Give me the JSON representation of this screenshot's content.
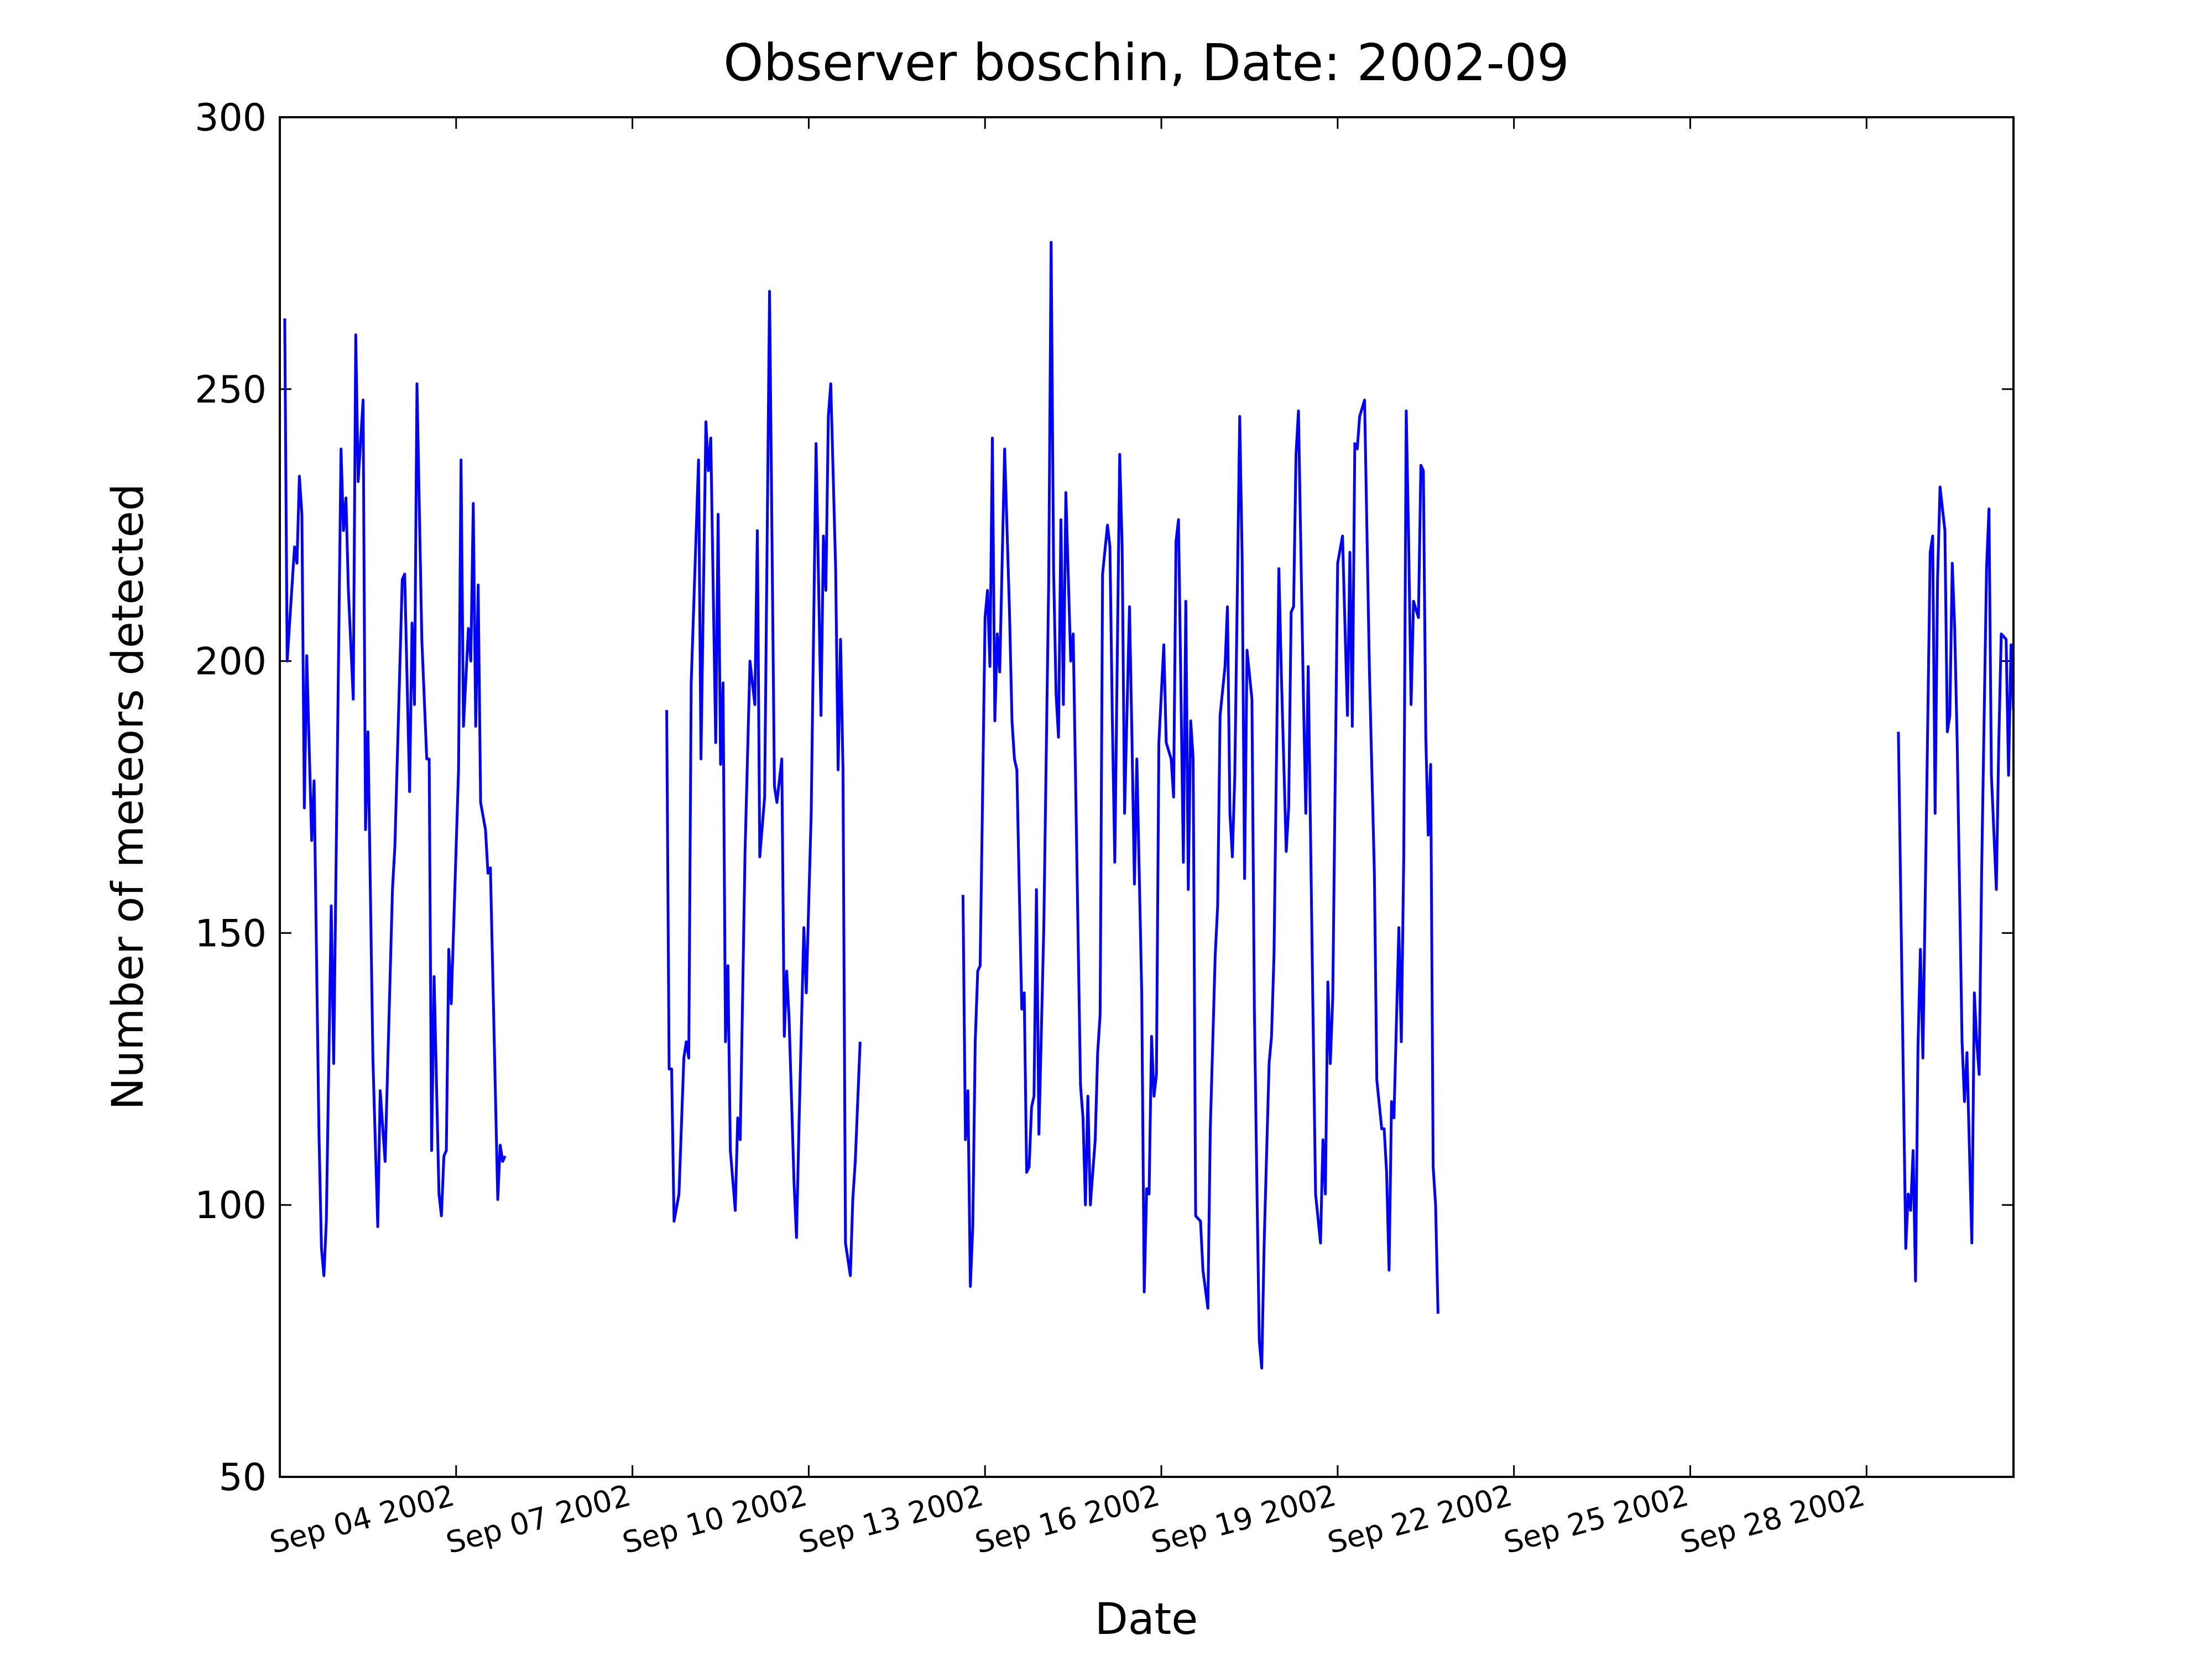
{
  "chart_data": {
    "type": "line",
    "title": "Observer boschin, Date: 2002-09",
    "x_label": "Date",
    "y_label": "Number of meteors detected",
    "xlim": [
      "2002-09-01T00:00",
      "2002-09-30T12:00"
    ],
    "xticks": [
      {
        "value": "2002-09-04T00:00",
        "label": "Sep 04 2002"
      },
      {
        "value": "2002-09-07T00:00",
        "label": "Sep 07 2002"
      },
      {
        "value": "2002-09-10T00:00",
        "label": "Sep 10 2002"
      },
      {
        "value": "2002-09-13T00:00",
        "label": "Sep 13 2002"
      },
      {
        "value": "2002-09-16T00:00",
        "label": "Sep 16 2002"
      },
      {
        "value": "2002-09-19T00:00",
        "label": "Sep 19 2002"
      },
      {
        "value": "2002-09-22T00:00",
        "label": "Sep 22 2002"
      },
      {
        "value": "2002-09-25T00:00",
        "label": "Sep 25 2002"
      },
      {
        "value": "2002-09-28T00:00",
        "label": "Sep 28 2002"
      }
    ],
    "ylim": [
      50,
      300
    ],
    "yticks": [
      50,
      100,
      150,
      200,
      250,
      300
    ],
    "grid": false,
    "color": "#0000ff",
    "x": [
      "2002-09-01T02:00",
      "2002-09-01T03:00",
      "2002-09-01T06:00",
      "2002-09-01T07:00",
      "2002-09-01T08:00",
      "2002-09-01T09:00",
      "2002-09-01T10:00",
      "2002-09-01T11:00",
      "2002-09-01T13:00",
      "2002-09-01T14:00",
      "2002-09-01T16:00",
      "2002-09-01T17:00",
      "2002-09-01T18:00",
      "2002-09-01T19:00",
      "2002-09-01T21:00",
      "2002-09-01T22:00",
      "2002-09-02T01:00",
      "2002-09-02T02:00",
      "2002-09-02T03:00",
      "2002-09-02T04:00",
      "2002-09-02T06:00",
      "2002-09-02T07:00",
      "2002-09-02T08:00",
      "2002-09-02T10:00",
      "2002-09-02T11:00",
      "2002-09-02T12:00",
      "2002-09-02T14:00",
      "2002-09-02T16:00",
      "2002-09-02T17:00",
      "2002-09-02T19:00",
      "2002-09-02T22:00",
      "2002-09-02T23:00",
      "2002-09-03T02:00",
      "2002-09-03T03:00",
      "2002-09-03T05:00",
      "2002-09-03T06:00",
      "2002-09-03T07:00",
      "2002-09-03T08:00",
      "2002-09-03T10:00",
      "2002-09-03T12:00",
      "2002-09-03T13:00",
      "2002-09-03T14:00",
      "2002-09-03T15:00",
      "2002-09-03T16:00",
      "2002-09-03T17:00",
      "2002-09-03T18:00",
      "2002-09-03T19:00",
      "2002-09-03T20:00",
      "2002-09-03T21:00",
      "2002-09-03T22:00",
      "2002-09-04T01:00",
      "2002-09-04T02:00",
      "2002-09-04T03:00",
      "2002-09-04T05:00",
      "2002-09-04T06:00",
      "2002-09-04T07:00",
      "2002-09-04T08:00",
      "2002-09-04T09:00",
      "2002-09-04T10:00",
      "2002-09-04T12:00",
      "2002-09-04T13:00",
      "2002-09-04T14:00",
      "2002-09-04T17:00",
      "2002-09-04T18:00",
      "2002-09-04T19:00",
      "2002-09-04T20:00",
      "2002-09-06T00:00",
      "2002-09-07T14:00",
      "2002-09-07T15:00",
      "2002-09-07T16:00",
      "2002-09-07T17:00",
      "2002-09-07T19:00",
      "2002-09-07T21:00",
      "2002-09-07T22:00",
      "2002-09-07T23:00",
      "2002-09-08T00:00",
      "2002-09-08T03:00",
      "2002-09-08T04:00",
      "2002-09-08T06:00",
      "2002-09-08T07:00",
      "2002-09-08T08:00",
      "2002-09-08T10:00",
      "2002-09-08T11:00",
      "2002-09-08T12:00",
      "2002-09-08T13:00",
      "2002-09-08T14:00",
      "2002-09-08T15:00",
      "2002-09-08T16:00",
      "2002-09-08T18:00",
      "2002-09-08T19:00",
      "2002-09-08T20:00",
      "2002-09-08T22:00",
      "2002-09-09T00:00",
      "2002-09-09T02:00",
      "2002-09-09T03:00",
      "2002-09-09T04:00",
      "2002-09-09T06:00",
      "2002-09-09T08:00",
      "2002-09-09T10:00",
      "2002-09-09T11:00",
      "2002-09-09T13:00",
      "2002-09-09T14:00",
      "2002-09-09T15:00",
      "2002-09-09T16:00",
      "2002-09-09T18:00",
      "2002-09-09T19:00",
      "2002-09-09T20:00",
      "2002-09-09T22:00",
      "2002-09-09T23:00",
      "2002-09-10T01:00",
      "2002-09-10T03:00",
      "2002-09-10T05:00",
      "2002-09-10T06:00",
      "2002-09-10T07:00",
      "2002-09-10T08:00",
      "2002-09-10T09:00",
      "2002-09-10T11:00",
      "2002-09-10T12:00",
      "2002-09-10T13:00",
      "2002-09-10T14:00",
      "2002-09-10T15:00",
      "2002-09-10T17:00",
      "2002-09-10T18:00",
      "2002-09-10T19:00",
      "2002-09-10T21:00",
      "2002-09-11T12:00",
      "2002-09-12T15:00",
      "2002-09-12T16:00",
      "2002-09-12T17:00",
      "2002-09-12T18:00",
      "2002-09-12T19:00",
      "2002-09-12T20:00",
      "2002-09-12T21:00",
      "2002-09-12T22:00",
      "2002-09-12T23:00",
      "2002-09-13T00:00",
      "2002-09-13T01:00",
      "2002-09-13T02:00",
      "2002-09-13T03:00",
      "2002-09-13T04:00",
      "2002-09-13T05:00",
      "2002-09-13T06:00",
      "2002-09-13T08:00",
      "2002-09-13T10:00",
      "2002-09-13T11:00",
      "2002-09-13T12:00",
      "2002-09-13T13:00",
      "2002-09-13T14:00",
      "2002-09-13T15:00",
      "2002-09-13T16:00",
      "2002-09-13T17:00",
      "2002-09-13T18:00",
      "2002-09-13T19:00",
      "2002-09-13T20:00",
      "2002-09-13T21:00",
      "2002-09-13T22:00",
      "2002-09-14T00:00",
      "2002-09-14T02:00",
      "2002-09-14T03:00",
      "2002-09-14T04:00",
      "2002-09-14T05:00",
      "2002-09-14T06:00",
      "2002-09-14T07:00",
      "2002-09-14T08:00",
      "2002-09-14T09:00",
      "2002-09-14T11:00",
      "2002-09-14T12:00",
      "2002-09-14T15:00",
      "2002-09-14T16:00",
      "2002-09-14T17:00",
      "2002-09-14T18:00",
      "2002-09-14T19:00",
      "2002-09-14T21:00",
      "2002-09-14T22:00",
      "2002-09-14T23:00",
      "2002-09-15T00:00",
      "2002-09-15T02:00",
      "2002-09-15T03:00",
      "2002-09-15T04:00",
      "2002-09-15T05:00",
      "2002-09-15T07:00",
      "2002-09-15T08:00",
      "2002-09-15T09:00",
      "2002-09-15T11:00",
      "2002-09-15T12:00",
      "2002-09-15T13:00",
      "2002-09-15T14:00",
      "2002-09-15T16:00",
      "2002-09-15T17:00",
      "2002-09-15T18:00",
      "2002-09-15T19:00",
      "2002-09-15T20:00",
      "2002-09-15T21:00",
      "2002-09-15T22:00",
      "2002-09-15T23:00",
      "2002-09-16T01:00",
      "2002-09-16T02:00",
      "2002-09-16T04:00",
      "2002-09-16T05:00",
      "2002-09-16T06:00",
      "2002-09-16T07:00",
      "2002-09-16T09:00",
      "2002-09-16T10:00",
      "2002-09-16T11:00",
      "2002-09-16T12:00",
      "2002-09-16T13:00",
      "2002-09-16T14:00",
      "2002-09-16T16:00",
      "2002-09-16T17:00",
      "2002-09-16T19:00",
      "2002-09-16T20:00",
      "2002-09-16T22:00",
      "2002-09-16T23:00",
      "2002-09-17T00:00",
      "2002-09-17T02:00",
      "2002-09-17T03:00",
      "2002-09-17T04:00",
      "2002-09-17T05:00",
      "2002-09-17T06:00",
      "2002-09-17T08:00",
      "2002-09-17T09:00",
      "2002-09-17T10:00",
      "2002-09-17T11:00",
      "2002-09-17T13:00",
      "2002-09-17T14:00",
      "2002-09-17T15:00",
      "2002-09-17T16:00",
      "2002-09-17T17:00",
      "2002-09-17T18:00",
      "2002-09-17T20:00",
      "2002-09-17T21:00",
      "2002-09-17T22:00",
      "2002-09-18T00:00",
      "2002-09-18T01:00",
      "2002-09-18T03:00",
      "2002-09-18T04:00",
      "2002-09-18T05:00",
      "2002-09-18T06:00",
      "2002-09-18T07:00",
      "2002-09-18T08:00",
      "2002-09-18T10:00",
      "2002-09-18T11:00",
      "2002-09-18T12:00",
      "2002-09-18T14:00",
      "2002-09-18T15:00",
      "2002-09-18T17:00",
      "2002-09-18T18:00",
      "2002-09-18T19:00",
      "2002-09-18T20:00",
      "2002-09-18T21:00",
      "2002-09-18T22:00",
      "2002-09-19T00:00",
      "2002-09-19T02:00",
      "2002-09-19T04:00",
      "2002-09-19T05:00",
      "2002-09-19T06:00",
      "2002-09-19T07:00",
      "2002-09-19T08:00",
      "2002-09-19T09:00",
      "2002-09-19T11:00",
      "2002-09-19T13:00",
      "2002-09-19T15:00",
      "2002-09-19T16:00",
      "2002-09-19T18:00",
      "2002-09-19T19:00",
      "2002-09-19T20:00",
      "2002-09-19T21:00",
      "2002-09-19T22:00",
      "2002-09-19T23:00",
      "2002-09-20T01:00",
      "2002-09-20T02:00",
      "2002-09-20T03:00",
      "2002-09-20T04:00",
      "2002-09-20T05:00",
      "2002-09-20T06:00",
      "2002-09-20T07:00",
      "2002-09-20T09:00",
      "2002-09-20T10:00",
      "2002-09-20T11:00",
      "2002-09-20T12:00",
      "2002-09-20T13:00",
      "2002-09-20T14:00",
      "2002-09-20T15:00",
      "2002-09-20T16:00",
      "2002-09-20T17:00",
      "2002-09-25T00:00",
      "2002-09-28T13:00",
      "2002-09-28T16:00",
      "2002-09-28T17:00",
      "2002-09-28T18:00",
      "2002-09-28T19:00",
      "2002-09-28T20:00",
      "2002-09-28T21:00",
      "2002-09-28T22:00",
      "2002-09-28T23:00",
      "2002-09-29T02:00",
      "2002-09-29T03:00",
      "2002-09-29T04:00",
      "2002-09-29T05:00",
      "2002-09-29T06:00",
      "2002-09-29T08:00",
      "2002-09-29T09:00",
      "2002-09-29T10:00",
      "2002-09-29T11:00",
      "2002-09-29T12:00",
      "2002-09-29T13:00",
      "2002-09-29T15:00",
      "2002-09-29T16:00",
      "2002-09-29T17:00",
      "2002-09-29T19:00",
      "2002-09-29T20:00",
      "2002-09-29T21:00",
      "2002-09-29T22:00",
      "2002-09-29T23:00",
      "2002-09-30T01:00",
      "2002-09-30T02:00",
      "2002-09-30T03:00",
      "2002-09-30T05:00",
      "2002-09-30T06:00",
      "2002-09-30T07:00",
      "2002-09-30T09:00",
      "2002-09-30T10:00",
      "2002-09-30T11:00",
      "2002-09-30T12:00"
    ],
    "values": [
      263,
      200,
      221,
      218,
      234,
      227,
      173,
      201,
      167,
      178,
      113,
      92,
      87,
      97,
      155,
      126,
      239,
      224,
      230,
      213,
      193,
      260,
      233,
      248,
      169,
      187,
      127,
      96,
      121,
      108,
      158,
      166,
      215,
      216,
      176,
      207,
      192,
      251,
      204,
      182,
      182,
      110,
      142,
      122,
      102,
      98,
      109,
      110,
      147,
      137,
      180,
      237,
      188,
      206,
      200,
      229,
      188,
      214,
      174,
      169,
      161,
      162,
      101,
      111,
      108,
      109,
      null,
      191,
      125,
      125,
      97,
      102,
      127,
      130,
      127,
      196,
      237,
      182,
      244,
      235,
      241,
      185,
      227,
      181,
      196,
      130,
      144,
      110,
      99,
      116,
      112,
      165,
      200,
      192,
      224,
      164,
      175,
      268,
      177,
      174,
      182,
      131,
      143,
      134,
      104,
      94,
      114,
      151,
      139,
      172,
      240,
      190,
      223,
      213,
      245,
      251,
      217,
      180,
      204,
      180,
      93,
      87,
      101,
      108,
      130,
      null,
      157,
      112,
      121,
      85,
      96,
      130,
      143,
      144,
      175,
      208,
      213,
      199,
      241,
      189,
      205,
      198,
      239,
      209,
      189,
      182,
      180,
      158,
      136,
      139,
      106,
      107,
      118,
      120,
      158,
      113,
      151,
      215,
      277,
      217,
      194,
      186,
      226,
      192,
      231,
      200,
      205,
      122,
      116,
      100,
      120,
      100,
      112,
      128,
      135,
      216,
      225,
      221,
      189,
      163,
      238,
      221,
      172,
      210,
      186,
      159,
      182,
      139,
      84,
      103,
      102,
      131,
      120,
      124,
      185,
      203,
      185,
      182,
      175,
      222,
      226,
      163,
      211,
      158,
      189,
      182,
      98,
      97,
      88,
      81,
      114,
      146,
      155,
      190,
      199,
      210,
      172,
      164,
      179,
      245,
      219,
      160,
      202,
      193,
      136,
      104,
      75,
      70,
      93,
      126,
      131,
      146,
      217,
      198,
      165,
      173,
      209,
      210,
      238,
      246,
      194,
      172,
      199,
      133,
      102,
      93,
      112,
      102,
      141,
      126,
      138,
      218,
      223,
      190,
      220,
      188,
      240,
      239,
      245,
      248,
      198,
      161,
      123,
      114,
      114,
      106,
      88,
      119,
      116,
      151,
      130,
      164,
      246,
      222,
      192,
      211,
      208,
      236,
      235,
      186,
      168,
      181,
      107,
      100,
      80,
      null,
      187,
      92,
      102,
      99,
      110,
      86,
      129,
      147,
      127,
      220,
      223,
      172,
      215,
      232,
      224,
      187,
      190,
      218,
      206,
      185,
      130,
      119,
      128,
      93,
      139,
      130,
      124,
      161,
      217,
      228,
      179,
      158,
      185,
      205,
      204,
      179,
      203,
      191
    ]
  }
}
